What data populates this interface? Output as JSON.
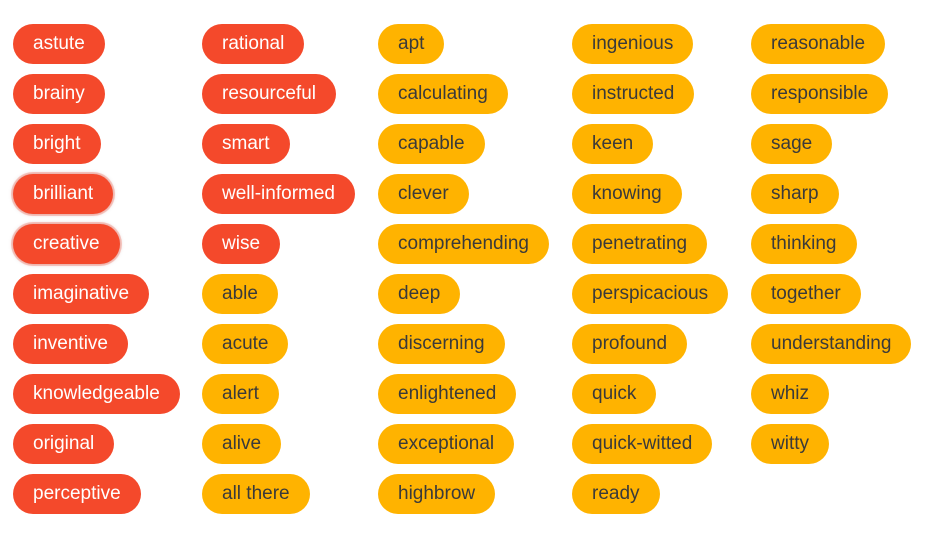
{
  "colors": {
    "primary_tag_bg": "#f4492b",
    "primary_tag_text": "#ffffff",
    "secondary_tag_bg": "#ffb300",
    "secondary_tag_text": "#3a3a3a"
  },
  "columns": [
    {
      "tags": [
        {
          "label": "astute",
          "style": "red"
        },
        {
          "label": "brainy",
          "style": "red"
        },
        {
          "label": "bright",
          "style": "red"
        },
        {
          "label": "brilliant",
          "style": "red",
          "highlighted": true
        },
        {
          "label": "creative",
          "style": "red",
          "highlighted": true
        },
        {
          "label": "imaginative",
          "style": "red"
        },
        {
          "label": "inventive",
          "style": "red"
        },
        {
          "label": "knowledgeable",
          "style": "red"
        },
        {
          "label": "original",
          "style": "red"
        },
        {
          "label": "perceptive",
          "style": "red"
        }
      ]
    },
    {
      "tags": [
        {
          "label": "rational",
          "style": "red"
        },
        {
          "label": "resourceful",
          "style": "red"
        },
        {
          "label": "smart",
          "style": "red"
        },
        {
          "label": "well-informed",
          "style": "red"
        },
        {
          "label": "wise",
          "style": "red"
        },
        {
          "label": "able",
          "style": "amber"
        },
        {
          "label": "acute",
          "style": "amber"
        },
        {
          "label": "alert",
          "style": "amber"
        },
        {
          "label": "alive",
          "style": "amber"
        },
        {
          "label": "all there",
          "style": "amber"
        }
      ]
    },
    {
      "tags": [
        {
          "label": "apt",
          "style": "amber"
        },
        {
          "label": "calculating",
          "style": "amber"
        },
        {
          "label": "capable",
          "style": "amber"
        },
        {
          "label": "clever",
          "style": "amber"
        },
        {
          "label": "comprehending",
          "style": "amber"
        },
        {
          "label": "deep",
          "style": "amber"
        },
        {
          "label": "discerning",
          "style": "amber"
        },
        {
          "label": "enlightened",
          "style": "amber"
        },
        {
          "label": "exceptional",
          "style": "amber"
        },
        {
          "label": "highbrow",
          "style": "amber"
        }
      ]
    },
    {
      "tags": [
        {
          "label": "ingenious",
          "style": "amber"
        },
        {
          "label": "instructed",
          "style": "amber"
        },
        {
          "label": "keen",
          "style": "amber"
        },
        {
          "label": "knowing",
          "style": "amber"
        },
        {
          "label": "penetrating",
          "style": "amber"
        },
        {
          "label": "perspicacious",
          "style": "amber"
        },
        {
          "label": "profound",
          "style": "amber"
        },
        {
          "label": "quick",
          "style": "amber"
        },
        {
          "label": "quick-witted",
          "style": "amber"
        },
        {
          "label": "ready",
          "style": "amber"
        }
      ]
    },
    {
      "tags": [
        {
          "label": "reasonable",
          "style": "amber"
        },
        {
          "label": "responsible",
          "style": "amber"
        },
        {
          "label": "sage",
          "style": "amber"
        },
        {
          "label": "sharp",
          "style": "amber"
        },
        {
          "label": "thinking",
          "style": "amber"
        },
        {
          "label": "together",
          "style": "amber"
        },
        {
          "label": "understanding",
          "style": "amber"
        },
        {
          "label": "whiz",
          "style": "amber"
        },
        {
          "label": "witty",
          "style": "amber"
        }
      ]
    }
  ]
}
